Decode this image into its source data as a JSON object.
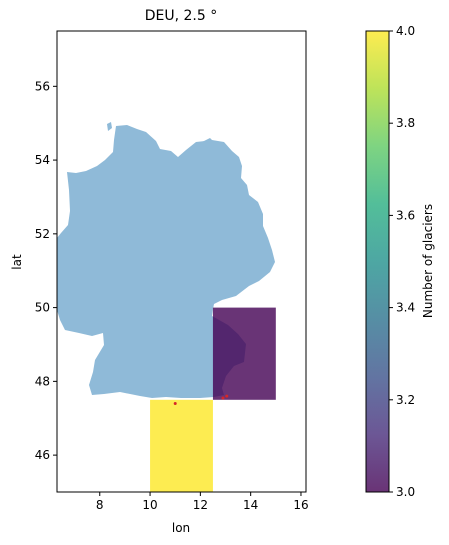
{
  "chart_data": {
    "type": "heatmap",
    "title": "DEU, 2.5 °",
    "xlabel": "lon",
    "ylabel": "lat",
    "xlim": [
      6.3,
      16.2
    ],
    "ylim": [
      45.0,
      57.5
    ],
    "x_ticks": [
      "8",
      "10",
      "12",
      "14",
      "16"
    ],
    "y_ticks": [
      "46",
      "48",
      "50",
      "52",
      "54",
      "56"
    ],
    "cells": [
      {
        "lon_min": 10.0,
        "lon_max": 12.5,
        "lat_min": 45.0,
        "lat_max": 47.5,
        "value": 4
      },
      {
        "lon_min": 12.5,
        "lon_max": 15.0,
        "lat_min": 47.5,
        "lat_max": 50.0,
        "value": 3
      }
    ],
    "glacier_points": [
      {
        "lon": 11.0,
        "lat": 47.4
      },
      {
        "lon": 12.9,
        "lat": 47.55
      },
      {
        "lon": 13.05,
        "lat": 47.6
      }
    ],
    "country_color": "#8fbad8",
    "point_color": "#d62728",
    "colorbar": {
      "label": "Number of glaciers",
      "min": 3.0,
      "max": 4.0,
      "ticks": [
        "3.0",
        "3.2",
        "3.4",
        "3.6",
        "3.8",
        "4.0"
      ],
      "colormap": "viridis"
    }
  }
}
